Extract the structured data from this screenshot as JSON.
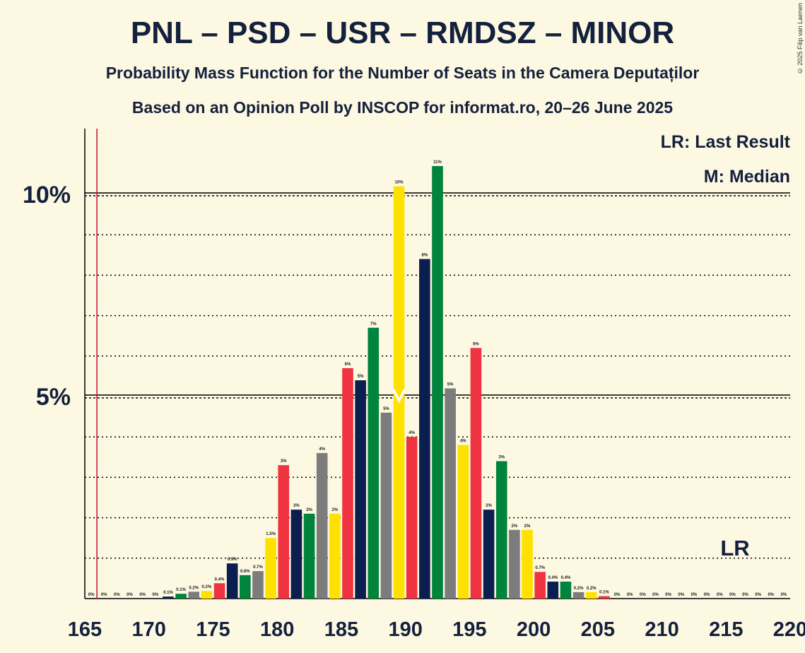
{
  "title": "PNL – PSD – USR – RMDSZ – MINOR",
  "subtitle": "Probability Mass Function for the Number of Seats in the Camera Deputaților",
  "subtitle2": "Based on an Opinion Poll by INSCOP for informat.ro, 20–26 June 2025",
  "copyright": "© 2025 Filip van Laenen",
  "legend": {
    "lr": "LR: Last Result",
    "median": "M: Median"
  },
  "lr_marker": "LR",
  "median_marker": "M",
  "colors": {
    "red": "#ef3340",
    "navy": "#0a1f4f",
    "green": "#00843d",
    "gray": "#7c7c7c",
    "yellow": "#ffe100",
    "lr_line": "#c8102e",
    "background": "#fdf8e2"
  },
  "chart_data": {
    "type": "bar",
    "x": [
      165,
      166,
      167,
      168,
      169,
      170,
      171,
      172,
      173,
      174,
      175,
      176,
      177,
      178,
      179,
      180,
      181,
      182,
      183,
      184,
      185,
      186,
      187,
      188,
      189,
      190,
      191,
      192,
      193,
      194,
      195,
      196,
      197,
      198,
      199,
      200,
      201,
      202,
      203,
      204,
      205,
      206,
      207,
      208,
      209,
      210,
      211,
      212,
      213,
      214,
      215,
      216,
      217,
      218,
      219
    ],
    "values": [
      0,
      0,
      0,
      0,
      0,
      0,
      0.05,
      0.12,
      0.17,
      0.19,
      0.38,
      0.87,
      0.58,
      0.68,
      1.5,
      3.3,
      2.2,
      2.1,
      3.6,
      2.1,
      5.7,
      5.4,
      6.7,
      4.6,
      10.2,
      4.0,
      8.4,
      10.7,
      5.2,
      3.8,
      6.2,
      2.2,
      3.4,
      1.7,
      1.7,
      0.66,
      0.42,
      0.42,
      0.16,
      0.16,
      0.06,
      0,
      0,
      0,
      0,
      0,
      0,
      0,
      0,
      0,
      0,
      0,
      0,
      0,
      0
    ],
    "labels": [
      "0%",
      "0%",
      "0%",
      "0%",
      "0%",
      "0%",
      "0.1%",
      "0.1%",
      "0.2%",
      "0.2%",
      "0.4%",
      "0.9%",
      "0.6%",
      "0.7%",
      "1.5%",
      "3%",
      "2%",
      "2%",
      "4%",
      "2%",
      "6%",
      "5%",
      "7%",
      "5%",
      "10%",
      "4%",
      "8%",
      "11%",
      "5%",
      "4%",
      "6%",
      "2%",
      "3%",
      "2%",
      "2%",
      "0.7%",
      "0.4%",
      "0.4%",
      "0.2%",
      "0.2%",
      "0.1%",
      "0%",
      "0%",
      "0%",
      "0%",
      "0%",
      "0%",
      "0%",
      "0%",
      "0%",
      "0%",
      "0%",
      "0%",
      "0%",
      "0%"
    ],
    "colors": [
      "red",
      "navy",
      "green",
      "gray",
      "yellow"
    ],
    "xlim": [
      165,
      220
    ],
    "ylim": [
      0,
      11.6
    ],
    "xticks": [
      165,
      170,
      175,
      180,
      185,
      190,
      195,
      200,
      205,
      210,
      215,
      220
    ],
    "yticks_labeled": [
      {
        "value": 5,
        "label": "5%"
      },
      {
        "value": 10,
        "label": "10%"
      }
    ],
    "grid_minor": [
      1,
      2,
      3,
      4,
      6,
      7,
      8,
      9
    ],
    "last_result": 166,
    "median": 189
  }
}
